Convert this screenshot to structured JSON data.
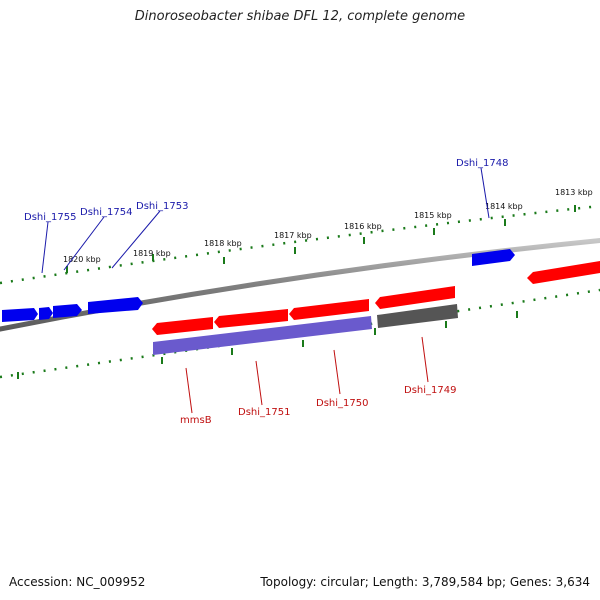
{
  "title": "Dinoroseobacter shibae DFL 12, complete genome",
  "footer": {
    "accession": "Accession: NC_009952",
    "stats": "Topology: circular; Length: 3,789,584 bp; Genes: 3,634"
  },
  "ruler_labels": [
    "1820 kbp",
    "1819 kbp",
    "1818 kbp",
    "1817 kbp",
    "1816 kbp",
    "1815 kbp",
    "1814 kbp",
    "1813 kbp"
  ],
  "gene_labels": {
    "outer": [
      "Dshi_1755",
      "Dshi_1754",
      "Dshi_1753",
      "Dshi_1748"
    ],
    "inner": [
      "mmsB",
      "Dshi_1751",
      "Dshi_1750",
      "Dshi_1749"
    ]
  },
  "colors": {
    "forward_gene": "#ff0000",
    "reverse_gene": "#0000ee",
    "rna_gene": "#6a5acd",
    "other_gene": "#555555",
    "tick": "#1a7a1a",
    "backbone": "#8a8a8a"
  }
}
